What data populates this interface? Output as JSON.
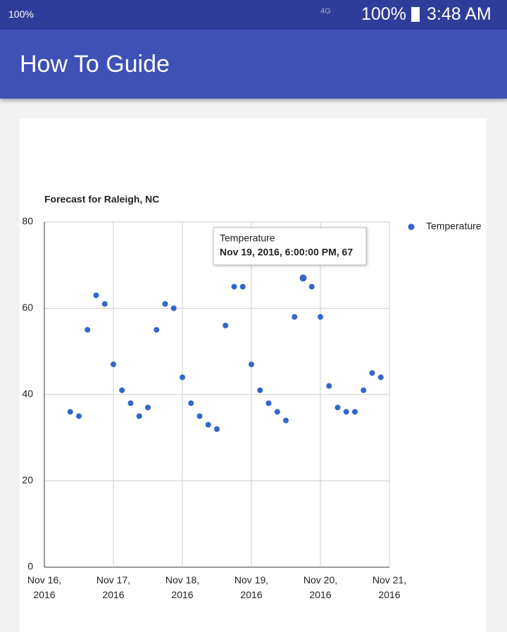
{
  "status_bar": {
    "left_text": "100%",
    "network": "4G",
    "battery": "100%",
    "time": "3:48 AM"
  },
  "app_bar": {
    "title": "How To Guide"
  },
  "chart_data": {
    "type": "scatter",
    "title": "Forecast for Raleigh, NC",
    "x": [
      "2016-11-16T09:00",
      "2016-11-16T12:00",
      "2016-11-16T15:00",
      "2016-11-16T18:00",
      "2016-11-16T21:00",
      "2016-11-17T00:00",
      "2016-11-17T03:00",
      "2016-11-17T06:00",
      "2016-11-17T09:00",
      "2016-11-17T12:00",
      "2016-11-17T15:00",
      "2016-11-17T18:00",
      "2016-11-17T21:00",
      "2016-11-18T00:00",
      "2016-11-18T03:00",
      "2016-11-18T06:00",
      "2016-11-18T09:00",
      "2016-11-18T12:00",
      "2016-11-18T15:00",
      "2016-11-18T18:00",
      "2016-11-18T21:00",
      "2016-11-19T00:00",
      "2016-11-19T03:00",
      "2016-11-19T06:00",
      "2016-11-19T09:00",
      "2016-11-19T12:00",
      "2016-11-19T15:00",
      "2016-11-19T18:00",
      "2016-11-19T21:00",
      "2016-11-20T00:00",
      "2016-11-20T03:00",
      "2016-11-20T06:00",
      "2016-11-20T09:00",
      "2016-11-20T12:00",
      "2016-11-20T15:00",
      "2016-11-20T18:00",
      "2016-11-20T21:00"
    ],
    "series": [
      {
        "name": "Temperature",
        "color": "#3366cc",
        "values": [
          36,
          35,
          55,
          63,
          61,
          47,
          41,
          38,
          35,
          37,
          55,
          61,
          60,
          44,
          38,
          35,
          33,
          32,
          56,
          65,
          65,
          47,
          41,
          38,
          36,
          34,
          58,
          67,
          65,
          58,
          42,
          37,
          36,
          36,
          41,
          45,
          44
        ]
      }
    ],
    "xlim": [
      "2016-11-16T00:00",
      "2016-11-21T00:00"
    ],
    "xticks": [
      {
        "value": "2016-11-16T00:00",
        "label": "Nov 16, 2016"
      },
      {
        "value": "2016-11-17T00:00",
        "label": "Nov 17, 2016"
      },
      {
        "value": "2016-11-18T00:00",
        "label": "Nov 18, 2016"
      },
      {
        "value": "2016-11-19T00:00",
        "label": "Nov 19, 2016"
      },
      {
        "value": "2016-11-20T00:00",
        "label": "Nov 20, 2016"
      },
      {
        "value": "2016-11-21T00:00",
        "label": "Nov 21, 2016"
      }
    ],
    "ylim": [
      0,
      80
    ],
    "yticks": [
      0,
      20,
      40,
      60,
      80
    ],
    "grid": true,
    "legend": "right",
    "tooltip": {
      "point": 27,
      "title": "Temperature",
      "text": "Nov 19, 2016, 6:00:00 PM, 67"
    }
  }
}
